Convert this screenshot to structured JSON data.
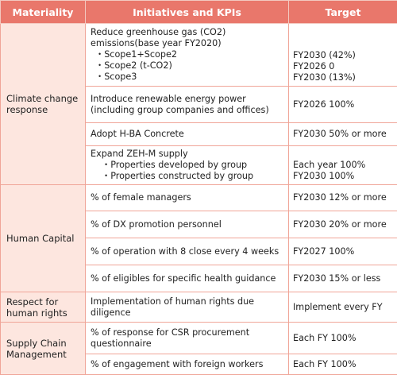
{
  "header": {
    "materiality": "Materiality",
    "initiatives": "Initiatives and KPIs",
    "target": "Target"
  },
  "rows": [
    {
      "materiality": "Climate change response",
      "items": [
        {
          "lines": [
            "Reduce greenhouse gas (CO2)",
            "emissions(base year FY2020)"
          ],
          "subs": [
            "・Scope1+Scope2",
            "・Scope2 (t-CO2)",
            "・Scope3"
          ],
          "targets": [
            "FY2030 (42%)",
            "FY2026 0",
            "FY2030 (13%)"
          ]
        },
        {
          "lines": [
            "Introduce renewable energy power",
            "(including group companies and offices)"
          ],
          "targets": [
            "FY2026 100%"
          ]
        },
        {
          "lines": [
            "Adopt H-BA Concrete"
          ],
          "targets": [
            "FY2030 50% or more"
          ]
        },
        {
          "lines": [
            "Expand ZEH-M supply"
          ],
          "subs": [
            "・Properties developed by group",
            "・Properties constructed by group"
          ],
          "targets": [
            "Each year 100%",
            "FY2030 100%"
          ]
        }
      ]
    },
    {
      "materiality": "Human Capital",
      "items": [
        {
          "lines": [
            "% of female managers"
          ],
          "targets": [
            "FY2030 12% or more"
          ]
        },
        {
          "lines": [
            "% of DX promotion personnel"
          ],
          "targets": [
            "FY2030 20% or more"
          ]
        },
        {
          "lines": [
            "% of operation with 8 close every 4 weeks"
          ],
          "targets": [
            "FY2027 100%"
          ]
        },
        {
          "lines": [
            "% of eligibles for specific health guidance"
          ],
          "targets": [
            "FY2030 15% or less"
          ]
        }
      ]
    },
    {
      "materiality": "Respect for human rights",
      "items": [
        {
          "lines": [
            "Implementation of human rights due",
            "diligence"
          ],
          "targets": [
            "Implement every FY"
          ]
        }
      ]
    },
    {
      "materiality": "Supply Chain Management",
      "items": [
        {
          "lines": [
            "% of response for CSR procurement",
            "questionnaire"
          ],
          "targets": [
            "Each FY 100%"
          ]
        },
        {
          "lines": [
            "% of engagement with foreign workers"
          ],
          "targets": [
            "Each FY 100%"
          ]
        }
      ]
    }
  ]
}
